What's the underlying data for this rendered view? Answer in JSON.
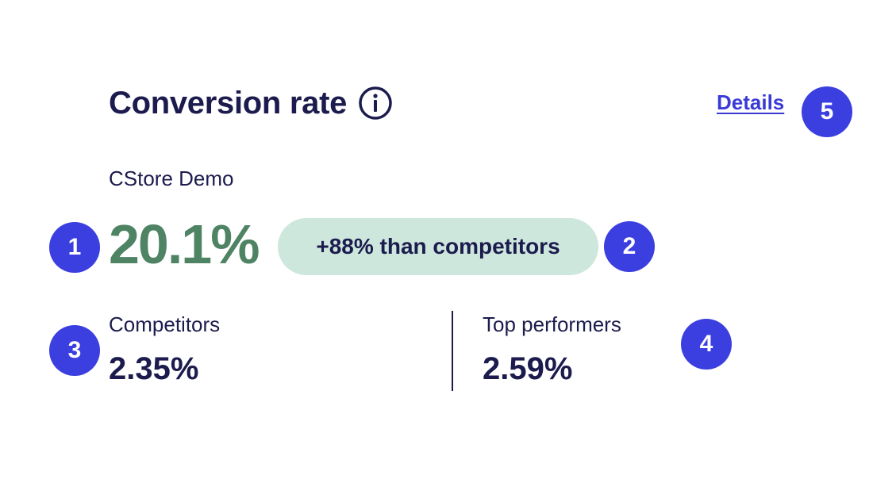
{
  "header": {
    "title": "Conversion rate",
    "details_link": "Details"
  },
  "store": {
    "name": "CStore Demo",
    "rate": "20.1%"
  },
  "comparison": {
    "pill_text": "+88% than competitors"
  },
  "competitors": {
    "label": "Competitors",
    "value": "2.35%"
  },
  "top_performers": {
    "label": "Top performers",
    "value": "2.59%"
  },
  "markers": [
    "1",
    "2",
    "3",
    "4",
    "5"
  ],
  "colors": {
    "text": "#1c1b4d",
    "rate_green": "#4e8363",
    "pill_bg": "#cde7dc",
    "link": "#3a3ad6",
    "badge_bg": "#3b3fe0"
  }
}
